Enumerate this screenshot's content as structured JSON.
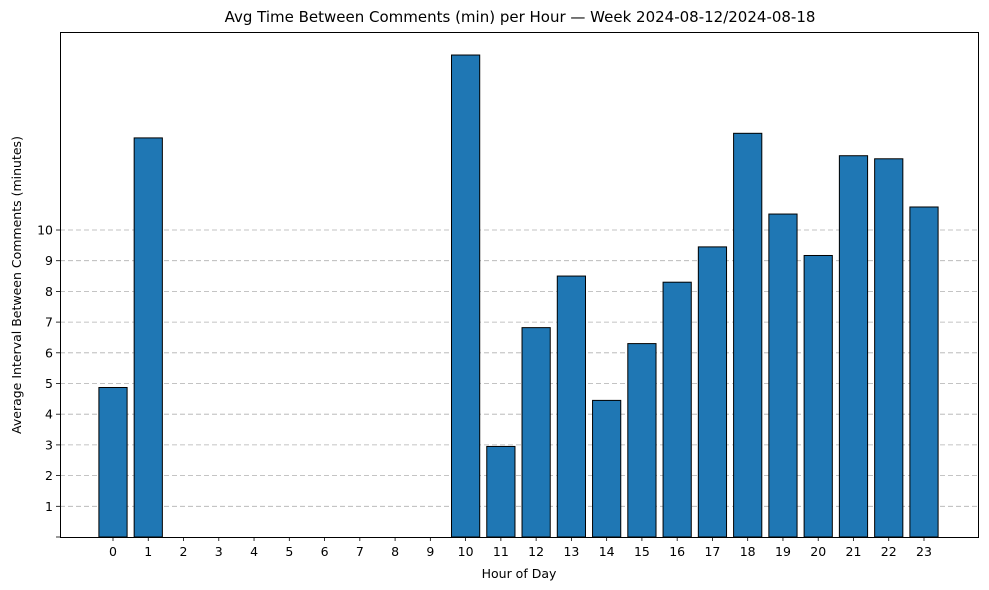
{
  "chart_data": {
    "type": "bar",
    "title": "Avg Time Between Comments (min) per Hour — Week 2024-08-12/2024-08-18",
    "xlabel": "Hour of Day",
    "ylabel": "Average Interval Between Comments (minutes)",
    "categories": [
      "0",
      "1",
      "2",
      "3",
      "4",
      "5",
      "6",
      "7",
      "8",
      "9",
      "10",
      "11",
      "12",
      "13",
      "14",
      "15",
      "16",
      "17",
      "18",
      "19",
      "20",
      "21",
      "22",
      "23"
    ],
    "values": [
      4.87,
      13.0,
      0,
      0,
      0,
      0,
      0,
      0,
      0,
      0,
      15.7,
      2.95,
      6.82,
      8.5,
      4.45,
      6.3,
      8.3,
      9.45,
      13.15,
      10.52,
      9.17,
      12.42,
      12.32,
      10.75
    ],
    "yticks": [
      "1",
      "2",
      "3",
      "4",
      "5",
      "6",
      "7",
      "8",
      "9",
      "10"
    ],
    "ylim": [
      0,
      16.45
    ],
    "grid": "y-dashed",
    "bar_color": "#1f77b4",
    "edge_color": "#000000"
  }
}
